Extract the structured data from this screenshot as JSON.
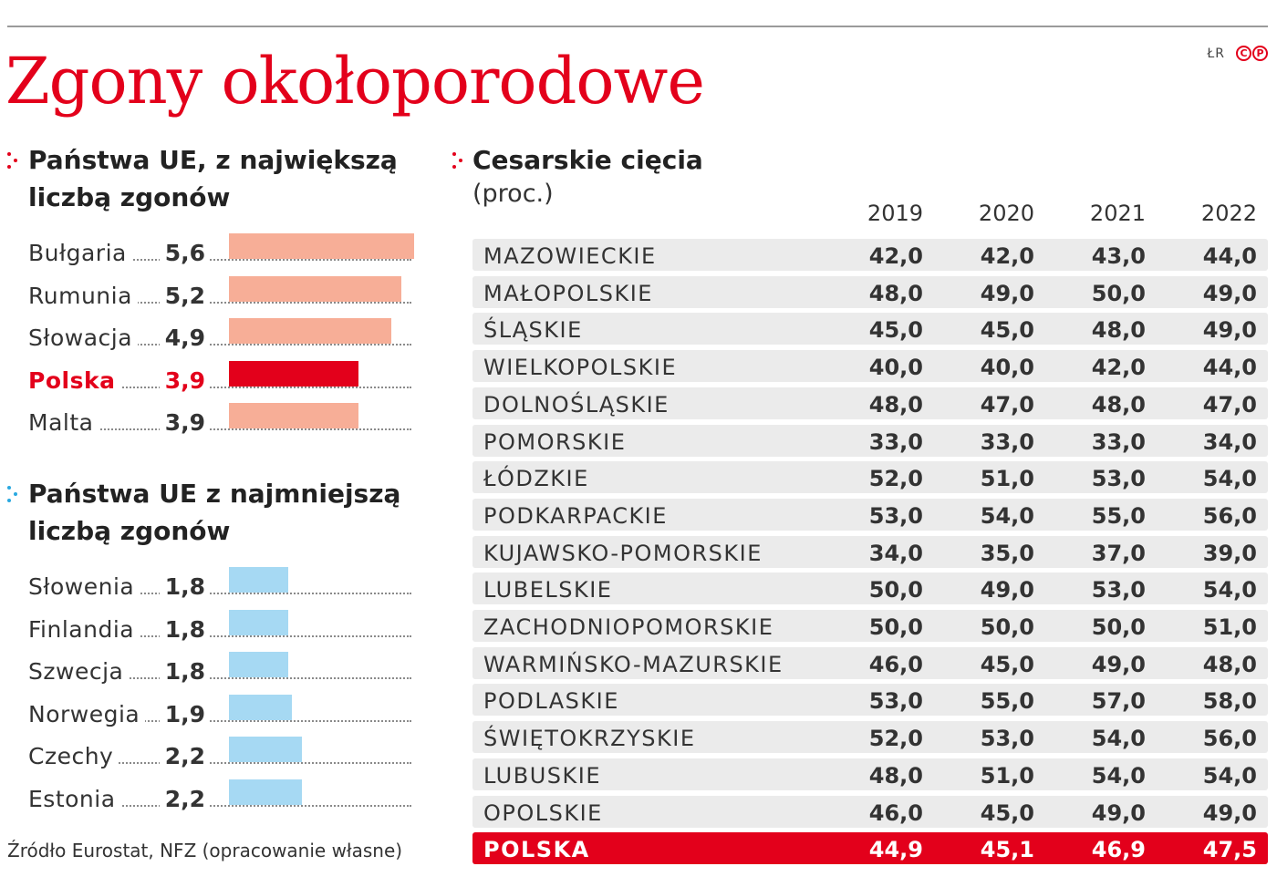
{
  "title": "Zgony okołoporodowe",
  "author": "ŁR",
  "logo": [
    "C",
    "P"
  ],
  "source": "Źródło Eurostat, NFZ (opracowanie własne)",
  "colors": {
    "accent": "#e3001b",
    "bar_high": "#f7ae97",
    "bar_low": "#a6d9f3",
    "highlight": "#e3001b"
  },
  "chart_data": [
    {
      "type": "bar",
      "orientation": "horizontal",
      "title_lines": [
        "Państwa UE, z największą",
        "liczbą zgonów"
      ],
      "categories": [
        "Bułgaria",
        "Rumunia",
        "Słowacja",
        "Polska",
        "Malta"
      ],
      "values": [
        5.6,
        5.2,
        4.9,
        3.9,
        3.9
      ],
      "labels": [
        "5,6",
        "5,2",
        "4,9",
        "3,9",
        "3,9"
      ],
      "highlight": "Polska"
    },
    {
      "type": "bar",
      "orientation": "horizontal",
      "title_lines": [
        "Państwa UE z najmniejszą",
        "liczbą zgonów"
      ],
      "categories": [
        "Słowenia",
        "Finlandia",
        "Szwecja",
        "Norwegia",
        "Czechy",
        "Estonia"
      ],
      "values": [
        1.8,
        1.8,
        1.8,
        1.9,
        2.2,
        2.2
      ],
      "labels": [
        "1,8",
        "1,8",
        "1,8",
        "1,9",
        "2,2",
        "2,2"
      ]
    },
    {
      "type": "table",
      "title": "Cesarskie cięcia",
      "subtitle": "(proc.)",
      "columns": [
        "2019",
        "2020",
        "2021",
        "2022"
      ],
      "rows": [
        {
          "name": "MAZOWIECKIE",
          "values": [
            "42,0",
            "42,0",
            "43,0",
            "44,0"
          ]
        },
        {
          "name": "MAŁOPOLSKIE",
          "values": [
            "48,0",
            "49,0",
            "50,0",
            "49,0"
          ]
        },
        {
          "name": "ŚLĄSKIE",
          "values": [
            "45,0",
            "45,0",
            "48,0",
            "49,0"
          ]
        },
        {
          "name": "WIELKOPOLSKIE",
          "values": [
            "40,0",
            "40,0",
            "42,0",
            "44,0"
          ]
        },
        {
          "name": "DOLNOŚLĄSKIE",
          "values": [
            "48,0",
            "47,0",
            "48,0",
            "47,0"
          ]
        },
        {
          "name": "POMORSKIE",
          "values": [
            "33,0",
            "33,0",
            "33,0",
            "34,0"
          ]
        },
        {
          "name": "ŁÓDZKIE",
          "values": [
            "52,0",
            "51,0",
            "53,0",
            "54,0"
          ]
        },
        {
          "name": "PODKARPACKIE",
          "values": [
            "53,0",
            "54,0",
            "55,0",
            "56,0"
          ]
        },
        {
          "name": "KUJAWSKO-POMORSKIE",
          "values": [
            "34,0",
            "35,0",
            "37,0",
            "39,0"
          ]
        },
        {
          "name": "LUBELSKIE",
          "values": [
            "50,0",
            "49,0",
            "53,0",
            "54,0"
          ]
        },
        {
          "name": "ZACHODNIOPOMORSKIE",
          "values": [
            "50,0",
            "50,0",
            "50,0",
            "51,0"
          ]
        },
        {
          "name": "WARMIŃSKO-MAZURSKIE",
          "values": [
            "46,0",
            "45,0",
            "49,0",
            "48,0"
          ]
        },
        {
          "name": "PODLASKIE",
          "values": [
            "53,0",
            "55,0",
            "57,0",
            "58,0"
          ]
        },
        {
          "name": "ŚWIĘTOKRZYSKIE",
          "values": [
            "52,0",
            "53,0",
            "54,0",
            "56,0"
          ]
        },
        {
          "name": "LUBUSKIE",
          "values": [
            "48,0",
            "51,0",
            "54,0",
            "54,0"
          ]
        },
        {
          "name": "OPOLSKIE",
          "values": [
            "46,0",
            "45,0",
            "49,0",
            "49,0"
          ]
        }
      ],
      "total": {
        "name": "POLSKA",
        "values": [
          "44,9",
          "45,1",
          "46,9",
          "47,5"
        ]
      }
    }
  ]
}
